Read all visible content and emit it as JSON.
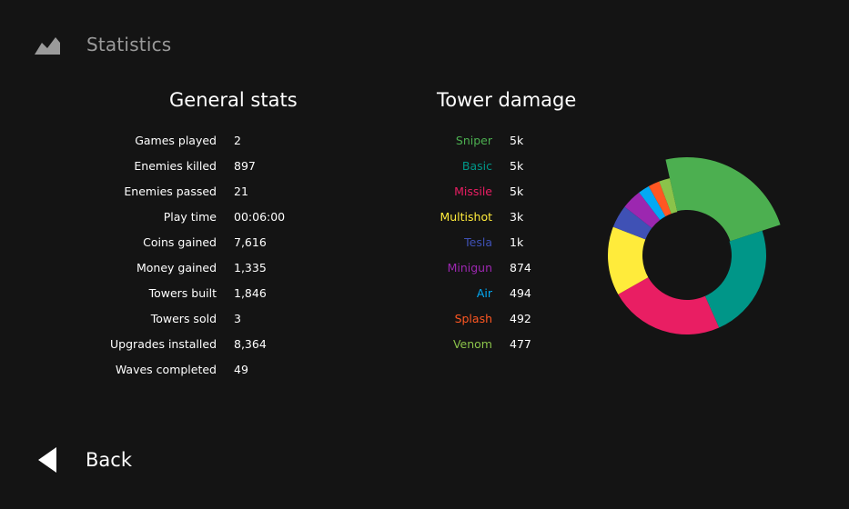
{
  "header": {
    "title": "Statistics",
    "icon": "chart-mountain-icon"
  },
  "general_stats": {
    "title": "General stats",
    "rows": [
      {
        "label": "Games played",
        "value": "2"
      },
      {
        "label": "Enemies killed",
        "value": "897"
      },
      {
        "label": "Enemies passed",
        "value": "21"
      },
      {
        "label": "Play time",
        "value": "00:06:00"
      },
      {
        "label": "Coins gained",
        "value": "7,616"
      },
      {
        "label": "Money gained",
        "value": "1,335"
      },
      {
        "label": "Towers built",
        "value": "1,846"
      },
      {
        "label": "Towers sold",
        "value": "3"
      },
      {
        "label": "Upgrades installed",
        "value": "8,364"
      },
      {
        "label": "Waves completed",
        "value": "49"
      }
    ]
  },
  "tower_damage": {
    "title": "Tower damage",
    "rows": [
      {
        "label": "Sniper",
        "value": "5k",
        "color": "#4caf50"
      },
      {
        "label": "Basic",
        "value": "5k",
        "color": "#009688"
      },
      {
        "label": "Missile",
        "value": "5k",
        "color": "#e91e63"
      },
      {
        "label": "Multishot",
        "value": "3k",
        "color": "#ffeb3b"
      },
      {
        "label": "Tesla",
        "value": "1k",
        "color": "#3f51b5"
      },
      {
        "label": "Minigun",
        "value": "874",
        "color": "#9c27b0"
      },
      {
        "label": "Air",
        "value": "494",
        "color": "#03a9f4"
      },
      {
        "label": "Splash",
        "value": "492",
        "color": "#ff5722"
      },
      {
        "label": "Venom",
        "value": "477",
        "color": "#8bc34a"
      }
    ]
  },
  "chart_data": {
    "type": "pie",
    "categories": [
      "Sniper",
      "Basic",
      "Missile",
      "Multishot",
      "Tesla",
      "Minigun",
      "Air",
      "Splash",
      "Venom"
    ],
    "values": [
      5000,
      5000,
      5000,
      3000,
      1000,
      874,
      494,
      492,
      477
    ],
    "colors": [
      "#4caf50",
      "#009688",
      "#e91e63",
      "#ffeb3b",
      "#3f51b5",
      "#9c27b0",
      "#03a9f4",
      "#ff5722",
      "#8bc34a"
    ],
    "highlighted": "Sniper",
    "donut": true
  },
  "back": {
    "label": "Back",
    "icon": "back-arrow-icon"
  }
}
